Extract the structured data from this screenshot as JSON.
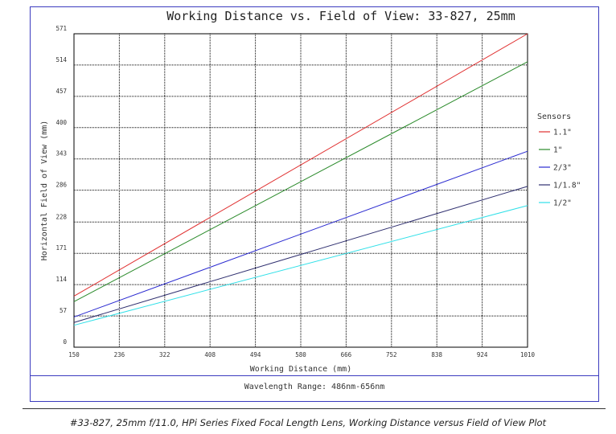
{
  "chart_data": {
    "type": "line",
    "title": "Working Distance vs. Field of View: 33-827, 25mm",
    "xlabel": "Working Distance (mm)",
    "ylabel": "Horizontal Field of View (mm)",
    "xlim": [
      150,
      1010
    ],
    "ylim": [
      0,
      571
    ],
    "x_ticks": [
      150,
      236,
      322,
      408,
      494,
      580,
      666,
      752,
      838,
      924,
      1010
    ],
    "y_ticks": [
      0,
      57,
      114,
      171,
      228,
      286,
      343,
      400,
      457,
      514,
      571
    ],
    "grid": true,
    "legend_title": "Sensors",
    "legend_position": "right",
    "series": [
      {
        "name": "1.1\"",
        "color": "#e03030",
        "x": [
          150,
          1010
        ],
        "y": [
          93,
          571
        ]
      },
      {
        "name": "1\"",
        "color": "#2a8a2a",
        "x": [
          150,
          1010
        ],
        "y": [
          83,
          520
        ]
      },
      {
        "name": "2/3\"",
        "color": "#2a2ad0",
        "x": [
          150,
          1010
        ],
        "y": [
          55,
          357
        ]
      },
      {
        "name": "1/1.8\"",
        "color": "#303070",
        "x": [
          150,
          1010
        ],
        "y": [
          45,
          293
        ]
      },
      {
        "name": "1/2\"",
        "color": "#30e0e8",
        "x": [
          150,
          1010
        ],
        "y": [
          40,
          258
        ]
      }
    ]
  },
  "footer": {
    "wavelength": "Wavelength Range: 486nm-656nm"
  },
  "caption": "#33-827, 25mm f/11.0, HPi Series Fixed Focal Length Lens, Working Distance versus Field of View Plot"
}
